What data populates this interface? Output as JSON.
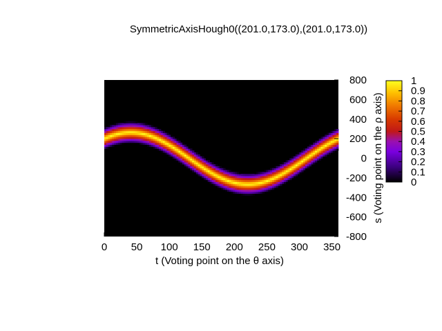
{
  "chart_data": {
    "type": "heatmap",
    "title": "SymmetricAxisHough0((201.0,173.0),(201.0,173.0))",
    "xlabel": "t (Voting point on the θ axis)",
    "ylabel": "s (Voting point on the ρ axis)",
    "xlim": [
      0,
      360
    ],
    "ylim": [
      -800,
      800
    ],
    "xticks": [
      "0",
      "50",
      "100",
      "150",
      "200",
      "250",
      "300",
      "350"
    ],
    "yticks": [
      "800",
      "600",
      "400",
      "200",
      "0",
      "-200",
      "-400",
      "-600",
      "-800"
    ],
    "colorbar": {
      "range": [
        0,
        1
      ],
      "ticks": [
        "1",
        "0.9",
        "0.8",
        "0.7",
        "0.6",
        "0.5",
        "0.4",
        "0.3",
        "0.2",
        "0.1",
        "0"
      ],
      "colormap": "black-purple-red-orange-yellow"
    },
    "curve": {
      "description": "s = 201.0*cos(t) + 173.0*sin(t)",
      "a": 201.0,
      "b": 173.0,
      "peak_s": 265,
      "peak_t": 40,
      "trough_s": -265,
      "trough_t": 220,
      "band_halfwidth_s": 110
    },
    "background_value": 0
  }
}
